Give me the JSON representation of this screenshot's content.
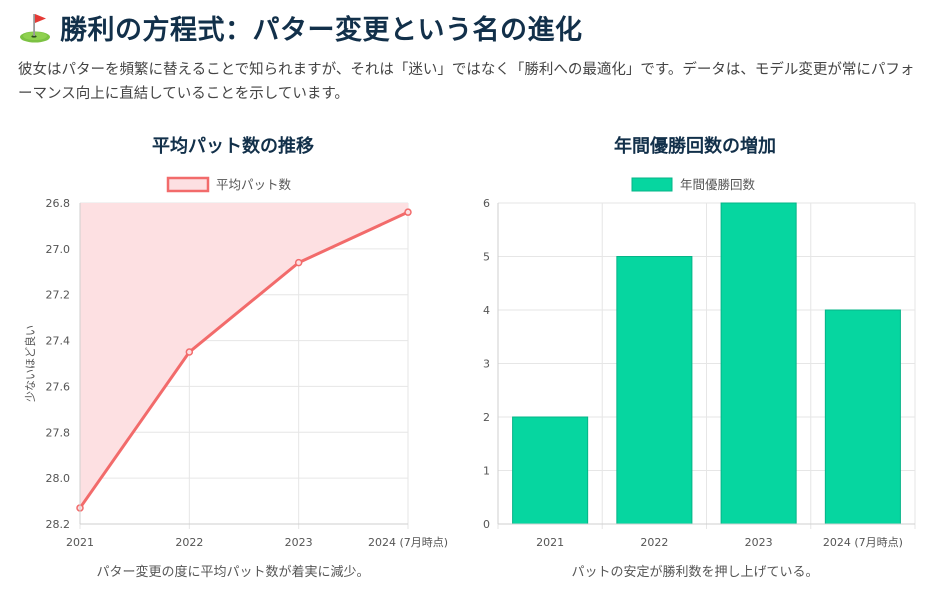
{
  "header": {
    "icon": "golf-flag-icon",
    "title": "勝利の方程式：パター変更という名の進化",
    "intro": "彼女はパターを頻繁に替えることで知られますが、それは「迷い」ではなく「勝利への最適化」です。データは、モデル変更が常にパフォーマンス向上に直結していることを示しています。"
  },
  "left_panel": {
    "title": "平均パット数の推移",
    "caption": "パター変更の度に平均パット数が着実に減少。"
  },
  "right_panel": {
    "title": "年間優勝回数の増加",
    "caption": "パットの安定が勝利数を押し上げている。"
  },
  "chart_data": [
    {
      "type": "area",
      "title": "平均パット数の推移",
      "categories": [
        "2021",
        "2022",
        "2023",
        "2024 (7月時点)"
      ],
      "series": [
        {
          "name": "平均パット数",
          "values": [
            28.13,
            27.45,
            27.06,
            26.84
          ]
        }
      ],
      "ylabel": "少ないほど良い",
      "xlabel": "",
      "ylim": [
        26.8,
        28.2
      ],
      "y_reversed": true,
      "yticks": [
        "26.8",
        "27.0",
        "27.2",
        "27.4",
        "27.6",
        "27.8",
        "28.0",
        "28.2"
      ],
      "grid": true,
      "legend": "top-center",
      "colors": {
        "line": "#f26b6b",
        "fill": "#fde0e2"
      }
    },
    {
      "type": "bar",
      "title": "年間優勝回数の増加",
      "categories": [
        "2021",
        "2022",
        "2023",
        "2024 (7月時点)"
      ],
      "series": [
        {
          "name": "年間優勝回数",
          "values": [
            2,
            5,
            6,
            4
          ]
        }
      ],
      "xlabel": "",
      "ylabel": "",
      "ylim": [
        0,
        6
      ],
      "yticks": [
        "0",
        "1",
        "2",
        "3",
        "4",
        "5",
        "6"
      ],
      "grid": true,
      "legend": "top-center",
      "colors": {
        "bar": "#06d6a0",
        "border": "#05b487"
      }
    }
  ]
}
